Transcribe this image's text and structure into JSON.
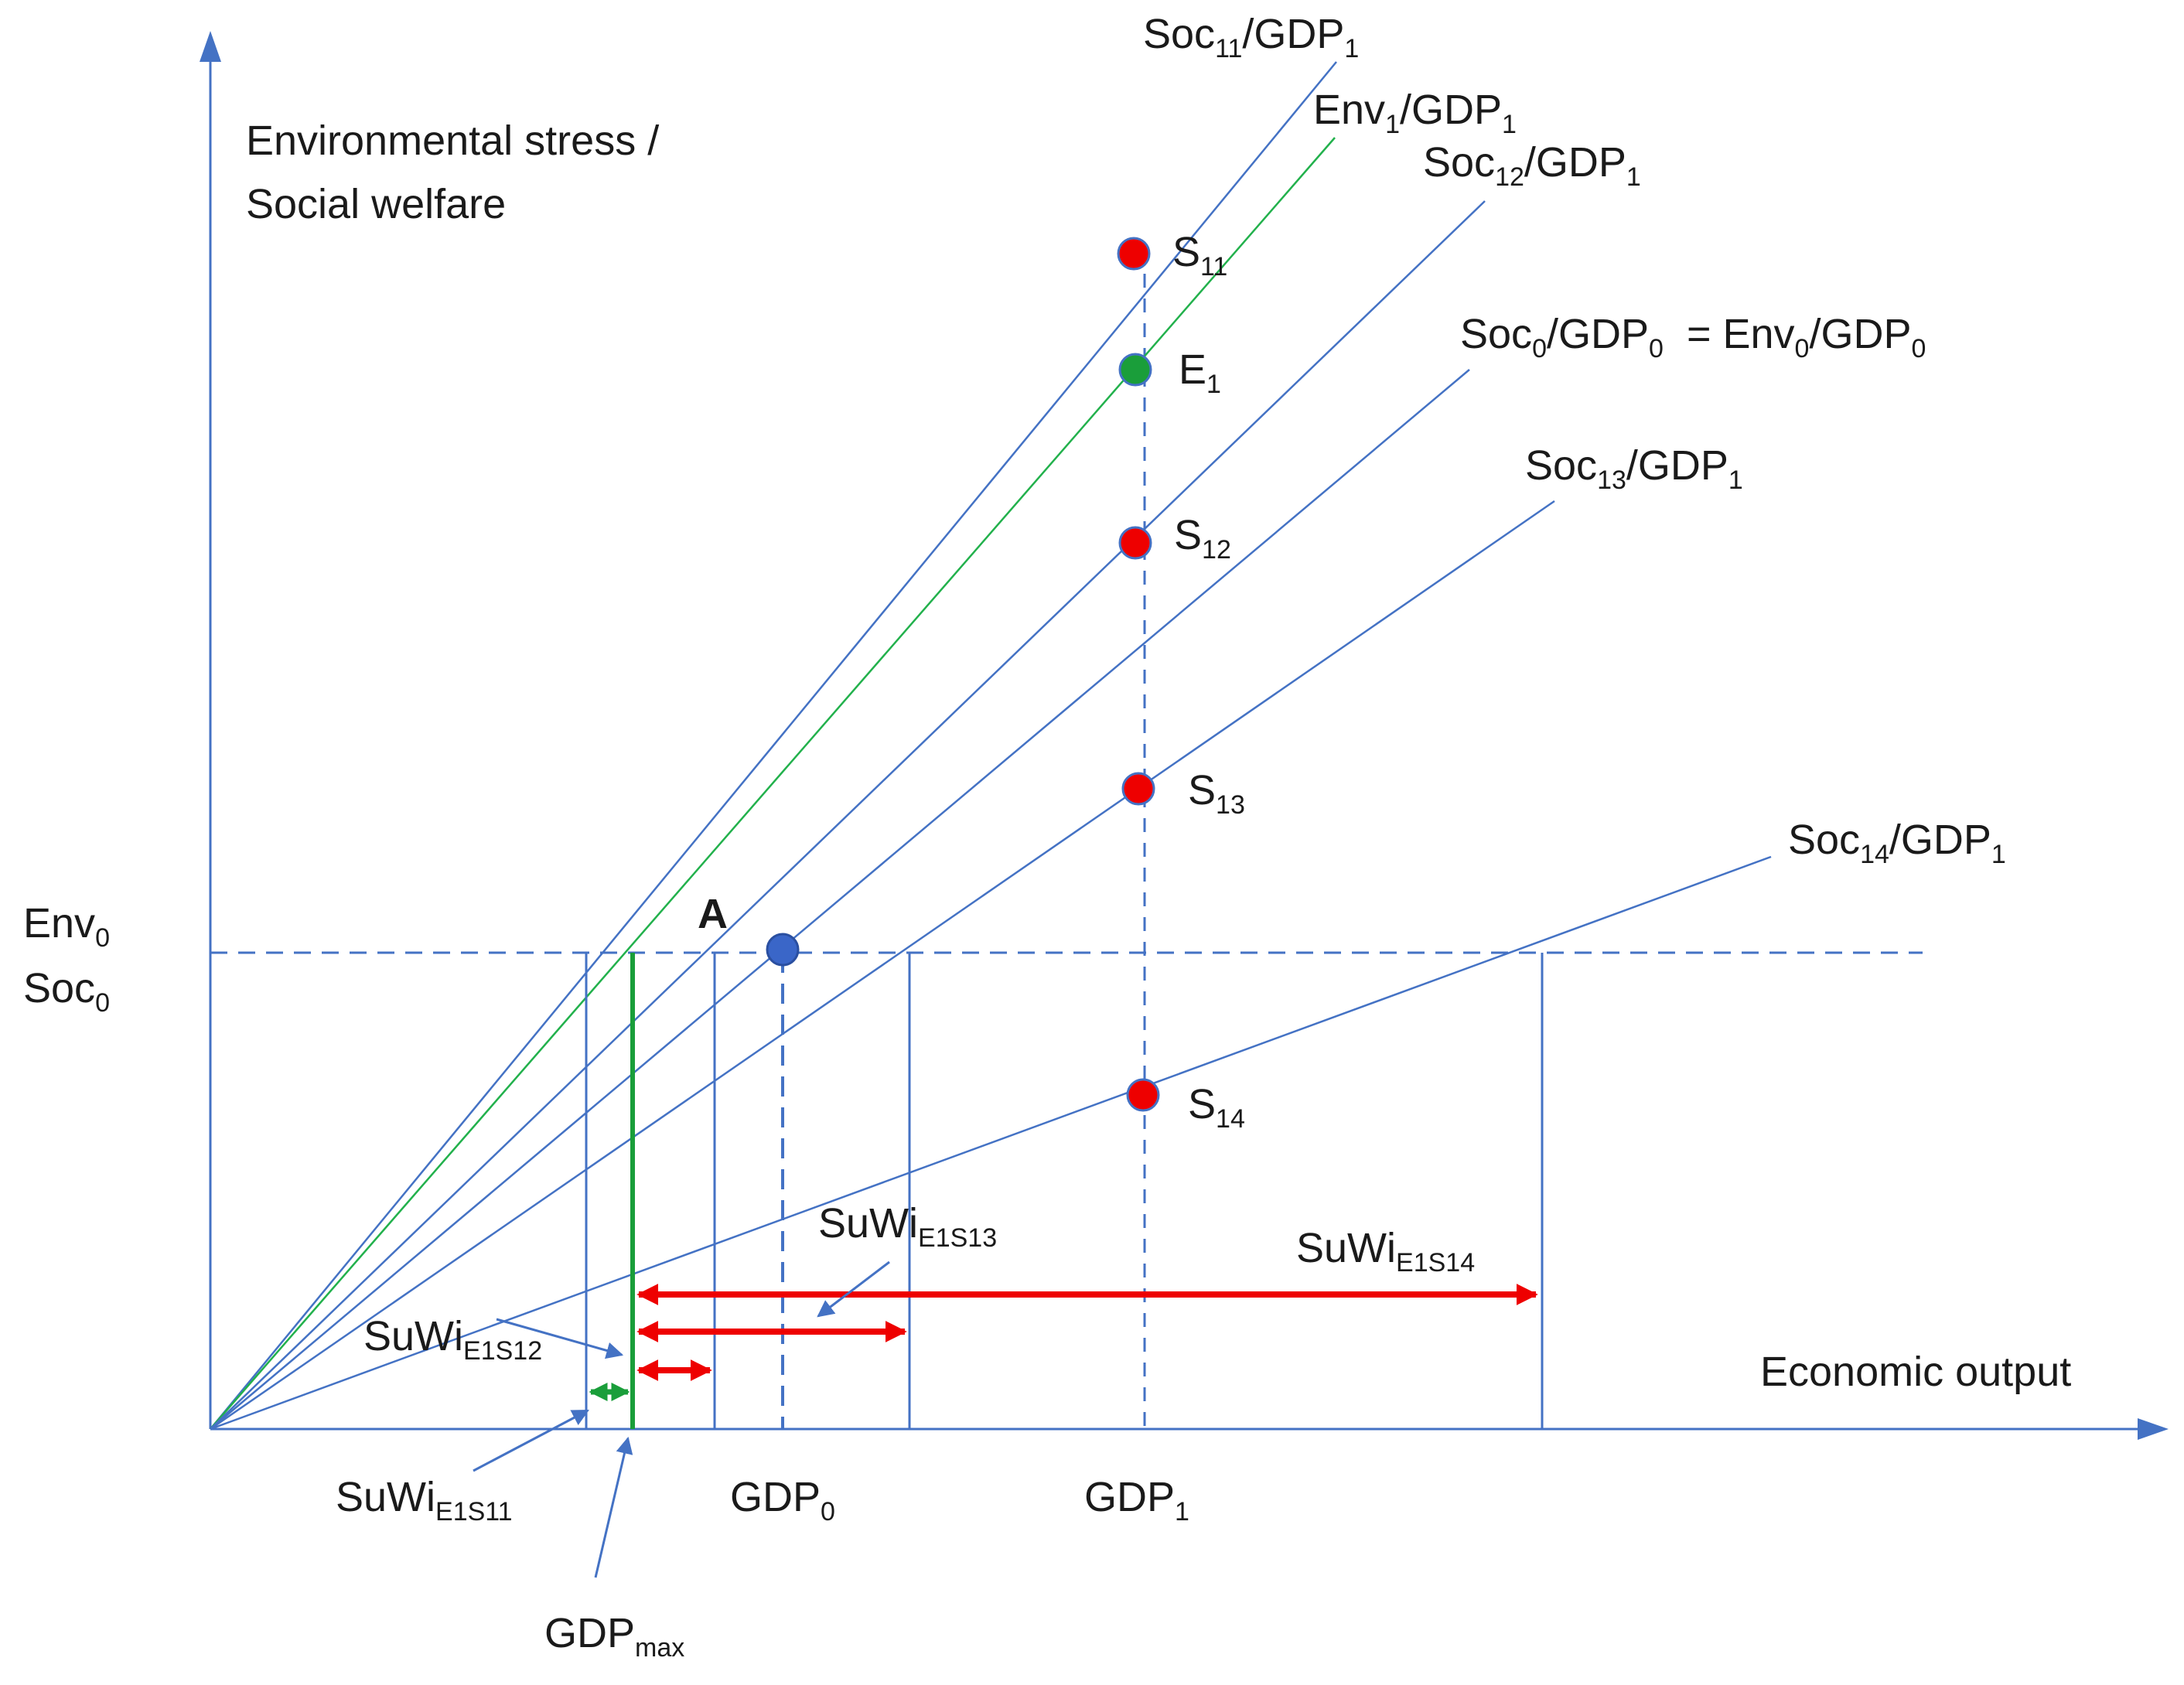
{
  "colors": {
    "axis": "#4472c4",
    "line": "#4472c4",
    "env_line": "#22b14c",
    "red_point": "#ee0000",
    "green_point": "#1a9e3a",
    "blue_point": "#3a66c8",
    "red_arrow": "#ee0000",
    "green_arrow": "#1a9e3a",
    "text": "#1a1a1a"
  },
  "axes": {
    "y_title_line1": "Environmental stress /",
    "y_title_line2": "Social welfare",
    "x_title": "Economic output",
    "y_marks": [
      {
        "base": "Env",
        "sub": "0"
      },
      {
        "base": "Soc",
        "sub": "0"
      }
    ],
    "x_marks": [
      {
        "base": "GDP",
        "sub": "0"
      },
      {
        "base": "GDP",
        "sub": "1"
      },
      {
        "base": "GDP",
        "sub": "max"
      }
    ]
  },
  "lines": [
    {
      "label": [
        {
          "t": "Soc"
        },
        {
          "t": "11",
          "sub": true
        },
        {
          "t": "/GDP"
        },
        {
          "t": "1",
          "sub": true
        }
      ]
    },
    {
      "label": [
        {
          "t": "Env"
        },
        {
          "t": "1",
          "sub": true
        },
        {
          "t": "/GDP"
        },
        {
          "t": "1",
          "sub": true
        }
      ]
    },
    {
      "label": [
        {
          "t": "Soc"
        },
        {
          "t": "12",
          "sub": true
        },
        {
          "t": "/GDP"
        },
        {
          "t": "1",
          "sub": true
        }
      ]
    },
    {
      "label": [
        {
          "t": "Soc"
        },
        {
          "t": "0",
          "sub": true
        },
        {
          "t": "/GDP"
        },
        {
          "t": "0",
          "sub": true
        },
        {
          "t": "  = Env"
        },
        {
          "t": "0",
          "sub": true
        },
        {
          "t": "/GDP"
        },
        {
          "t": "0",
          "sub": true
        }
      ]
    },
    {
      "label": [
        {
          "t": "Soc"
        },
        {
          "t": "13",
          "sub": true
        },
        {
          "t": "/GDP"
        },
        {
          "t": "1",
          "sub": true
        }
      ]
    },
    {
      "label": [
        {
          "t": "Soc"
        },
        {
          "t": "14",
          "sub": true
        },
        {
          "t": "/GDP"
        },
        {
          "t": "1",
          "sub": true
        }
      ]
    }
  ],
  "points": [
    {
      "base": "S",
      "sub": "11"
    },
    {
      "base": "E",
      "sub": "1"
    },
    {
      "base": "S",
      "sub": "12"
    },
    {
      "base": "S",
      "sub": "13"
    },
    {
      "base": "S",
      "sub": "14"
    },
    {
      "base": "A",
      "sub": ""
    }
  ],
  "suwi_labels": [
    {
      "base": "SuWi",
      "sub": "E1S11"
    },
    {
      "base": "SuWi",
      "sub": "E1S12"
    },
    {
      "base": "SuWi",
      "sub": "E1S13"
    },
    {
      "base": "SuWi",
      "sub": "E1S14"
    }
  ]
}
